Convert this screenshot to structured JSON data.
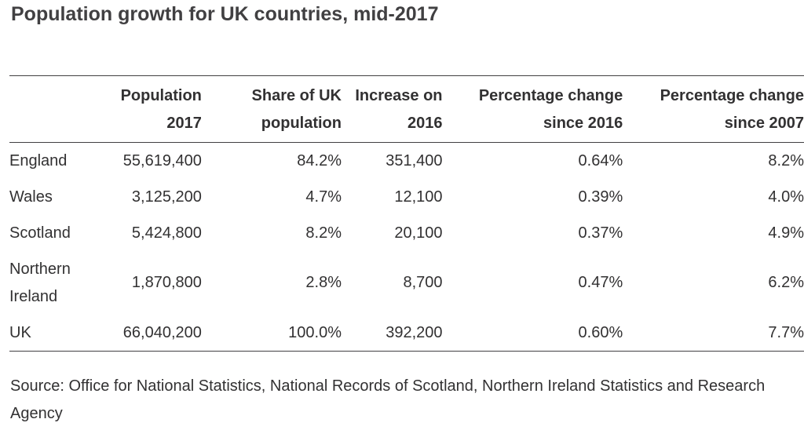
{
  "title": "Population growth for UK countries, mid-2017",
  "table": {
    "headers": [
      {
        "line1": "",
        "line2": ""
      },
      {
        "line1": "Population",
        "line2": "2017"
      },
      {
        "line1": "Share of UK",
        "line2": "population"
      },
      {
        "line1": "Increase on",
        "line2": "2016"
      },
      {
        "line1": "Percentage change",
        "line2": "since 2016"
      },
      {
        "line1": "Percentage change",
        "line2": "since 2007"
      }
    ],
    "rows": [
      {
        "country": "England",
        "country2": "",
        "population": "55,619,400",
        "share": "84.2%",
        "increase": "351,400",
        "pct2016": "0.64%",
        "pct2007": "8.2%"
      },
      {
        "country": "Wales",
        "country2": "",
        "population": "3,125,200",
        "share": "4.7%",
        "increase": "12,100",
        "pct2016": "0.39%",
        "pct2007": "4.0%"
      },
      {
        "country": "Scotland",
        "country2": "",
        "population": "5,424,800",
        "share": "8.2%",
        "increase": "20,100",
        "pct2016": "0.37%",
        "pct2007": "4.9%"
      },
      {
        "country": "Northern",
        "country2": "Ireland",
        "population": "1,870,800",
        "share": "2.8%",
        "increase": "8,700",
        "pct2016": "0.47%",
        "pct2007": "6.2%"
      },
      {
        "country": "UK",
        "country2": "",
        "population": "66,040,200",
        "share": "100.0%",
        "increase": "392,200",
        "pct2016": "0.60%",
        "pct2007": "7.7%"
      }
    ]
  },
  "source": "Source: Office for National Statistics, National Records of Scotland, Northern Ireland Statistics and Research Agency"
}
